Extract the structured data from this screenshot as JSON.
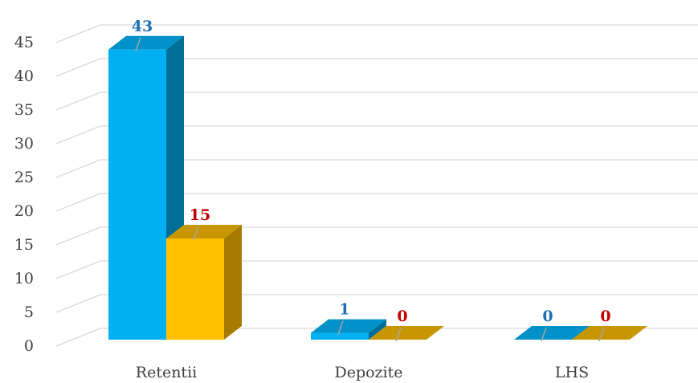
{
  "chart_data": {
    "type": "bar",
    "style": "3d-clustered-column",
    "title": "",
    "xlabel": "",
    "ylabel": "",
    "categories": [
      "Retentii",
      "Depozite",
      "LHS"
    ],
    "series": [
      {
        "values": [
          43,
          1,
          0
        ],
        "color": "#00b0f0",
        "side_color": "#006e96",
        "top_color": "#0091c8",
        "label_color": "#1f6fb4"
      },
      {
        "values": [
          15,
          0,
          0
        ],
        "color": "#ffc000",
        "side_color": "#a57c00",
        "top_color": "#c89600",
        "label_color": "#c00000"
      }
    ],
    "ylim": [
      0,
      45
    ],
    "yticks": [
      "0",
      "5",
      "10",
      "15",
      "20",
      "25",
      "30",
      "35",
      "40",
      "45"
    ],
    "grid": true,
    "legend": "none",
    "data_labels": true
  }
}
